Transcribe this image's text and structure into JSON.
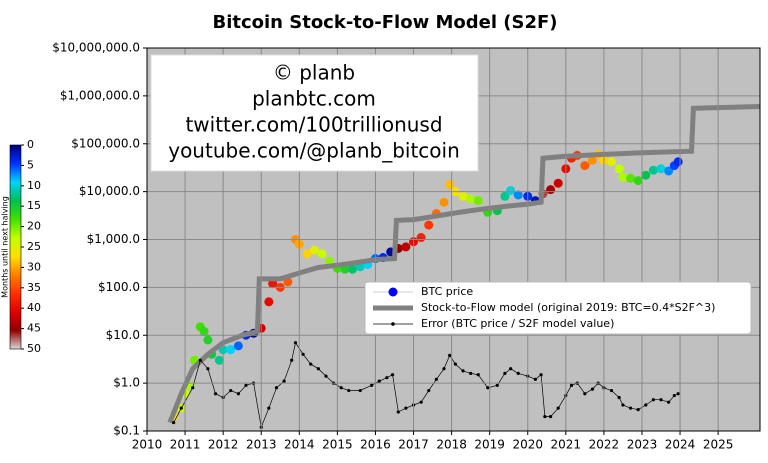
{
  "chart_data": {
    "type": "scatter",
    "title": "Bitcoin Stock-to-Flow Model (S2F)",
    "annotations": [
      "© planb",
      "planbtc.com",
      "twitter.com/100trillionusd",
      "youtube.com/@planb_bitcoin"
    ],
    "xlim": [
      2010,
      2026.1
    ],
    "xticks": [
      2010,
      2011,
      2012,
      2013,
      2014,
      2015,
      2016,
      2017,
      2018,
      2019,
      2020,
      2021,
      2022,
      2023,
      2024,
      2025
    ],
    "ylim": [
      0.1,
      10000000
    ],
    "log_y": true,
    "yticks": [
      {
        "value": 0.1,
        "label": "$0.1"
      },
      {
        "value": 1,
        "label": "$1.0"
      },
      {
        "value": 10,
        "label": "$10.0"
      },
      {
        "value": 100,
        "label": "$100.0"
      },
      {
        "value": 1000,
        "label": "$1,000.0"
      },
      {
        "value": 10000,
        "label": "$10,000.0"
      },
      {
        "value": 100000,
        "label": "$100,000.0"
      },
      {
        "value": 1000000,
        "label": "$1,000,000.0"
      },
      {
        "value": 10000000,
        "label": "$10,000,000.0"
      }
    ],
    "grid": true,
    "background": "#c0c0c0",
    "legend": "center right",
    "colorbar": {
      "label": "Months until next halving",
      "lim": [
        0,
        50
      ],
      "ticks": [
        0,
        5,
        10,
        15,
        20,
        25,
        30,
        35,
        40,
        45,
        50
      ],
      "colors": [
        "#00007f",
        "#0030ff",
        "#00d4ff",
        "#00c050",
        "#40e000",
        "#c0ff00",
        "#ffe000",
        "#ff8000",
        "#ff3000",
        "#e00000",
        "#900000",
        "#d8d8d8"
      ]
    },
    "series": [
      {
        "name": "BTC price",
        "kind": "scatter",
        "color": "#0000ff",
        "x": [
          2010.7,
          2010.9,
          2011.0,
          2011.1,
          2011.25,
          2011.4,
          2011.5,
          2011.6,
          2011.7,
          2011.9,
          2012.0,
          2012.2,
          2012.4,
          2012.6,
          2012.8,
          2013.0,
          2013.2,
          2013.3,
          2013.5,
          2013.7,
          2013.9,
          2014.0,
          2014.2,
          2014.4,
          2014.6,
          2014.8,
          2015.0,
          2015.2,
          2015.4,
          2015.6,
          2015.8,
          2016.0,
          2016.2,
          2016.4,
          2016.6,
          2016.8,
          2017.0,
          2017.2,
          2017.4,
          2017.6,
          2017.8,
          2017.95,
          2018.1,
          2018.3,
          2018.5,
          2018.7,
          2018.95,
          2019.2,
          2019.4,
          2019.55,
          2019.75,
          2020.0,
          2020.2,
          2020.4,
          2020.6,
          2020.8,
          2021.0,
          2021.15,
          2021.3,
          2021.5,
          2021.7,
          2021.85,
          2022.0,
          2022.2,
          2022.4,
          2022.5,
          2022.7,
          2022.9,
          2023.1,
          2023.3,
          2023.5,
          2023.7,
          2023.85,
          2023.95
        ],
        "values": [
          0.2,
          0.3,
          0.6,
          0.9,
          3,
          15,
          12,
          8,
          4,
          3,
          5,
          5,
          6,
          10,
          11,
          14,
          50,
          120,
          100,
          130,
          1000,
          800,
          500,
          600,
          500,
          350,
          250,
          240,
          240,
          270,
          300,
          400,
          420,
          550,
          650,
          700,
          900,
          1100,
          2000,
          3500,
          6000,
          14000,
          10000,
          8000,
          7000,
          6500,
          3700,
          4000,
          8000,
          10500,
          8500,
          8000,
          6500,
          9000,
          11000,
          15000,
          30000,
          50000,
          57000,
          35000,
          45000,
          60000,
          45000,
          42000,
          30000,
          20000,
          19000,
          17000,
          22000,
          28000,
          30000,
          27000,
          35000,
          42000
        ],
        "months": [
          27,
          24,
          23,
          22,
          20,
          18,
          17,
          16,
          15,
          12,
          11,
          9,
          6,
          4,
          1,
          42,
          40,
          39,
          36,
          34,
          31,
          30,
          28,
          25,
          23,
          21,
          18,
          16,
          13,
          11,
          9,
          6,
          4,
          1,
          45,
          43,
          40,
          38,
          36,
          33,
          31,
          29,
          27,
          25,
          22,
          20,
          17,
          14,
          12,
          10,
          7,
          4,
          2,
          47,
          44,
          42,
          40,
          38,
          36,
          34,
          31,
          29,
          28,
          25,
          23,
          22,
          19,
          17,
          14,
          12,
          10,
          7,
          5,
          4
        ]
      },
      {
        "name": "Stock-to-Flow model (original 2019:  BTC=0.4*S2F^3)",
        "kind": "line",
        "color": "#808080",
        "x": [
          2010.6,
          2010.9,
          2011.2,
          2011.6,
          2012.0,
          2012.5,
          2012.9,
          2012.95,
          2013.5,
          2014.0,
          2014.5,
          2015.0,
          2015.5,
          2016.0,
          2016.5,
          2016.55,
          2017.0,
          2017.5,
          2018.0,
          2018.5,
          2019.0,
          2019.5,
          2020.0,
          2020.35,
          2020.4,
          2021.0,
          2022.0,
          2023.0,
          2024.3,
          2024.35,
          2025.0,
          2026.1
        ],
        "values": [
          0.15,
          0.6,
          2,
          4,
          7,
          10,
          12,
          150,
          150,
          200,
          260,
          290,
          330,
          380,
          400,
          2500,
          2600,
          3000,
          3500,
          4000,
          4500,
          5000,
          5500,
          6000,
          50000,
          55000,
          60000,
          65000,
          70000,
          550000,
          570000,
          600000
        ]
      },
      {
        "name": "Error (BTC price / S2F model value)",
        "kind": "line-markers",
        "color": "#000000",
        "x": [
          2010.7,
          2010.9,
          2011.2,
          2011.4,
          2011.6,
          2011.8,
          2012.0,
          2012.2,
          2012.4,
          2012.6,
          2012.8,
          2013.0,
          2013.2,
          2013.4,
          2013.6,
          2013.8,
          2013.9,
          2014.1,
          2014.3,
          2014.5,
          2014.7,
          2014.9,
          2015.1,
          2015.3,
          2015.6,
          2015.9,
          2016.1,
          2016.3,
          2016.45,
          2016.6,
          2016.8,
          2017.0,
          2017.2,
          2017.4,
          2017.6,
          2017.8,
          2017.95,
          2018.1,
          2018.3,
          2018.5,
          2018.7,
          2018.95,
          2019.2,
          2019.4,
          2019.55,
          2019.75,
          2020.0,
          2020.2,
          2020.35,
          2020.45,
          2020.6,
          2020.8,
          2021.0,
          2021.15,
          2021.3,
          2021.5,
          2021.7,
          2021.85,
          2022.0,
          2022.2,
          2022.4,
          2022.5,
          2022.7,
          2022.9,
          2023.1,
          2023.3,
          2023.5,
          2023.7,
          2023.85,
          2023.95
        ],
        "values": [
          0.15,
          0.3,
          0.8,
          3,
          2,
          0.6,
          0.5,
          0.7,
          0.6,
          0.9,
          1.0,
          0.12,
          0.3,
          0.8,
          1.1,
          3,
          7,
          4,
          2.5,
          2,
          1.4,
          1,
          0.8,
          0.7,
          0.7,
          0.9,
          1.1,
          1.3,
          1.5,
          0.25,
          0.3,
          0.35,
          0.4,
          0.7,
          1.2,
          2,
          3.8,
          2.5,
          1.8,
          1.6,
          1.5,
          0.8,
          0.9,
          1.6,
          2,
          1.6,
          1.4,
          1.2,
          1.5,
          0.2,
          0.2,
          0.3,
          0.55,
          0.9,
          1.0,
          0.6,
          0.75,
          1.0,
          0.8,
          0.7,
          0.5,
          0.35,
          0.3,
          0.28,
          0.35,
          0.45,
          0.45,
          0.4,
          0.55,
          0.6
        ]
      }
    ]
  }
}
